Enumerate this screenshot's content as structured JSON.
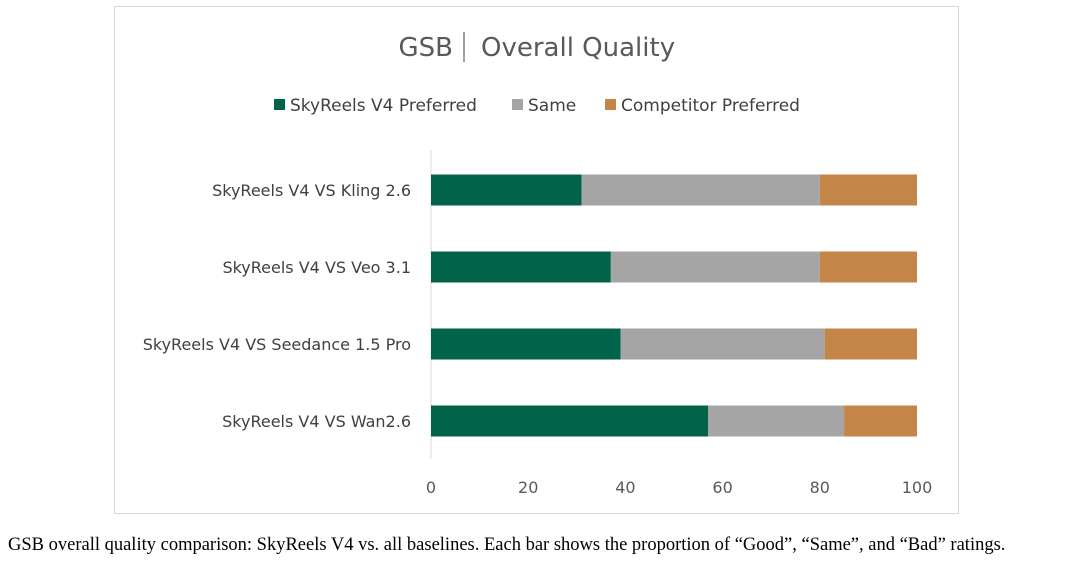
{
  "chart_data": {
    "type": "stacked-bar-horizontal",
    "title_left": "GSB",
    "title_right": "Overall Quality",
    "categories": [
      "SkyReels V4 VS Kling 2.6",
      "SkyReels V4 VS Veo 3.1",
      "SkyReels V4 VS Seedance 1.5 Pro",
      "SkyReels V4 VS Wan2.6"
    ],
    "series": [
      {
        "name": "SkyReels V4 Preferred",
        "color": "#00634a",
        "values": [
          31,
          37,
          39,
          57
        ]
      },
      {
        "name": "Same",
        "color": "#a5a5a5",
        "values": [
          49,
          43,
          42,
          28
        ]
      },
      {
        "name": "Competitor Preferred",
        "color": "#c48548",
        "values": [
          20,
          20,
          19,
          15
        ]
      }
    ],
    "xlim": [
      0,
      100
    ],
    "xticks": [
      "0",
      "20",
      "40",
      "60",
      "80",
      "100"
    ],
    "legend_position": "top",
    "grid": false
  },
  "caption": "GSB overall quality comparison: SkyReels V4 vs. all baselines. Each bar shows the proportion of “Good”, “Same”, and “Bad” ratings."
}
